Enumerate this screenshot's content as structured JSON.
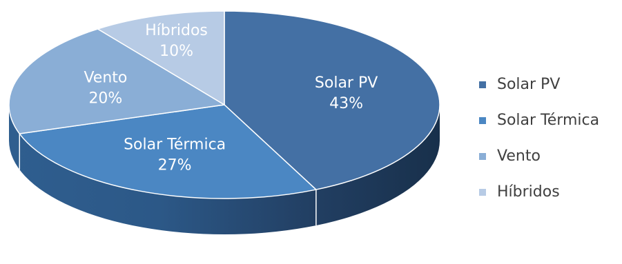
{
  "chart_data": {
    "type": "pie",
    "style": "3d",
    "categories": [
      "Solar PV",
      "Solar Térmica",
      "Vento",
      "Híbridos"
    ],
    "values": [
      43,
      27,
      20,
      10
    ],
    "value_labels": [
      "43%",
      "27%",
      "20%",
      "10%"
    ],
    "colors": [
      "#4470a4",
      "#4b87c3",
      "#8aaed6",
      "#b7cbe5"
    ],
    "legend": {
      "position": "right",
      "entries": [
        "Solar PV",
        "Solar Térmica",
        "Vento",
        "Híbridos"
      ]
    }
  }
}
